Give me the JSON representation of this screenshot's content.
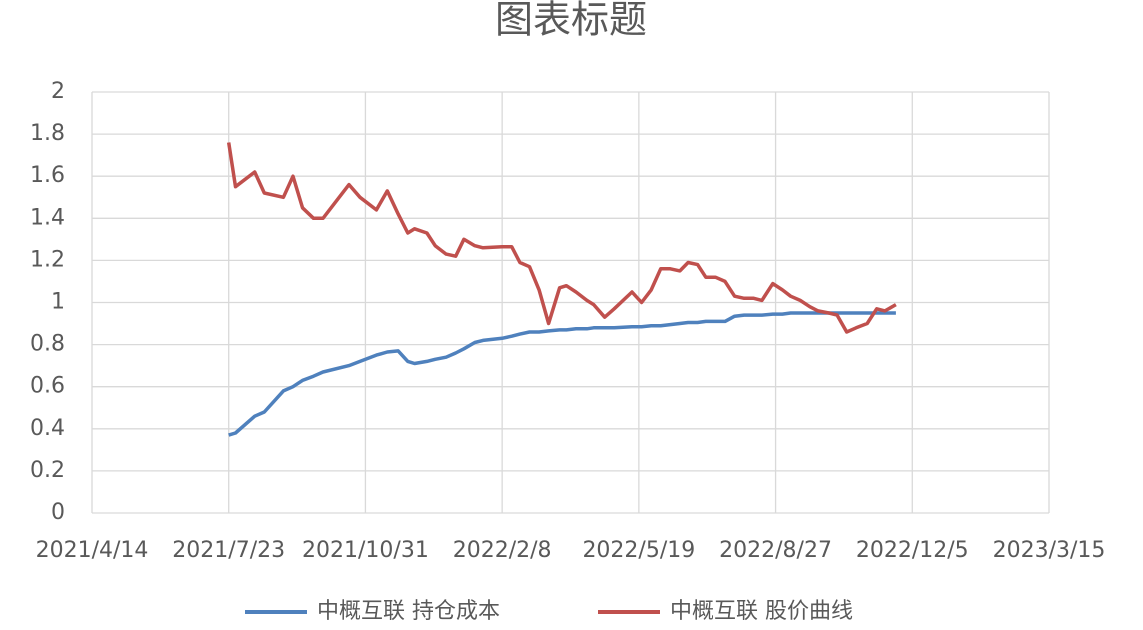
{
  "chart_data": {
    "type": "line",
    "title": "图表标题",
    "x": [
      "2021/7/23",
      "2021/7/28",
      "2021/8/11",
      "2021/8/18",
      "2021/9/1",
      "2021/9/8",
      "2021/9/15",
      "2021/9/23",
      "2021/9/30",
      "2021/10/19",
      "2021/10/27",
      "2021/11/8",
      "2021/11/16",
      "2021/11/24",
      "2021/12/1",
      "2021/12/6",
      "2021/12/15",
      "2021/12/21",
      "2021/12/29",
      "2022/1/5",
      "2022/1/11",
      "2022/1/19",
      "2022/1/25",
      "2022/2/8",
      "2022/2/15",
      "2022/2/21",
      "2022/2/28",
      "2022/3/7",
      "2022/3/14",
      "2022/3/22",
      "2022/3/27",
      "2022/4/3",
      "2022/4/11",
      "2022/4/16",
      "2022/4/24",
      "2022/5/1",
      "2022/5/14",
      "2022/5/21",
      "2022/5/28",
      "2022/6/4",
      "2022/6/11",
      "2022/6/18",
      "2022/6/24",
      "2022/7/1",
      "2022/7/7",
      "2022/7/14",
      "2022/7/21",
      "2022/7/28",
      "2022/8/4",
      "2022/8/11",
      "2022/8/17",
      "2022/8/25",
      "2022/9/1",
      "2022/9/7",
      "2022/9/14",
      "2022/9/21",
      "2022/9/27",
      "2022/10/5",
      "2022/10/11",
      "2022/10/18",
      "2022/10/25",
      "2022/11/2",
      "2022/11/9",
      "2022/11/15",
      "2022/11/23"
    ],
    "series": [
      {
        "name": "中概互联 持仓成本",
        "color": "#4f81bd",
        "values": [
          0.37,
          0.38,
          0.46,
          0.48,
          0.58,
          0.6,
          0.63,
          0.65,
          0.67,
          0.7,
          0.72,
          0.75,
          0.765,
          0.77,
          0.72,
          0.71,
          0.72,
          0.73,
          0.74,
          0.76,
          0.78,
          0.81,
          0.82,
          0.83,
          0.84,
          0.85,
          0.86,
          0.86,
          0.865,
          0.87,
          0.87,
          0.875,
          0.875,
          0.88,
          0.88,
          0.88,
          0.885,
          0.885,
          0.89,
          0.89,
          0.895,
          0.9,
          0.905,
          0.905,
          0.91,
          0.91,
          0.91,
          0.935,
          0.94,
          0.94,
          0.94,
          0.945,
          0.945,
          0.95,
          0.95,
          0.95,
          0.95,
          0.95,
          0.95,
          0.95,
          0.95,
          0.95,
          0.95,
          0.95,
          0.95
        ]
      },
      {
        "name": "中概互联 股价曲线",
        "color": "#c0504d",
        "values": [
          1.76,
          1.55,
          1.62,
          1.52,
          1.5,
          1.6,
          1.45,
          1.4,
          1.4,
          1.56,
          1.5,
          1.44,
          1.53,
          1.42,
          1.33,
          1.35,
          1.33,
          1.27,
          1.23,
          1.22,
          1.3,
          1.27,
          1.26,
          1.265,
          1.265,
          1.19,
          1.17,
          1.06,
          0.9,
          1.07,
          1.08,
          1.05,
          1.01,
          0.99,
          0.93,
          0.97,
          1.05,
          1.0,
          1.06,
          1.16,
          1.16,
          1.15,
          1.19,
          1.18,
          1.12,
          1.12,
          1.1,
          1.03,
          1.02,
          1.02,
          1.01,
          1.09,
          1.06,
          1.03,
          1.01,
          0.98,
          0.96,
          0.95,
          0.94,
          0.86,
          0.88,
          0.9,
          0.97,
          0.96,
          0.99
        ]
      }
    ],
    "xlim": [
      "2021/4/14",
      "2023/3/15"
    ],
    "xticks": [
      "2021/4/14",
      "2021/7/23",
      "2021/10/31",
      "2022/2/8",
      "2022/5/19",
      "2022/8/27",
      "2022/12/5",
      "2023/3/15"
    ],
    "ylim": [
      0,
      2
    ],
    "yticks": [
      0,
      0.2,
      0.4,
      0.6,
      0.8,
      1,
      1.2,
      1.4,
      1.6,
      1.8,
      2
    ],
    "grid": true,
    "legend": "bottom"
  }
}
